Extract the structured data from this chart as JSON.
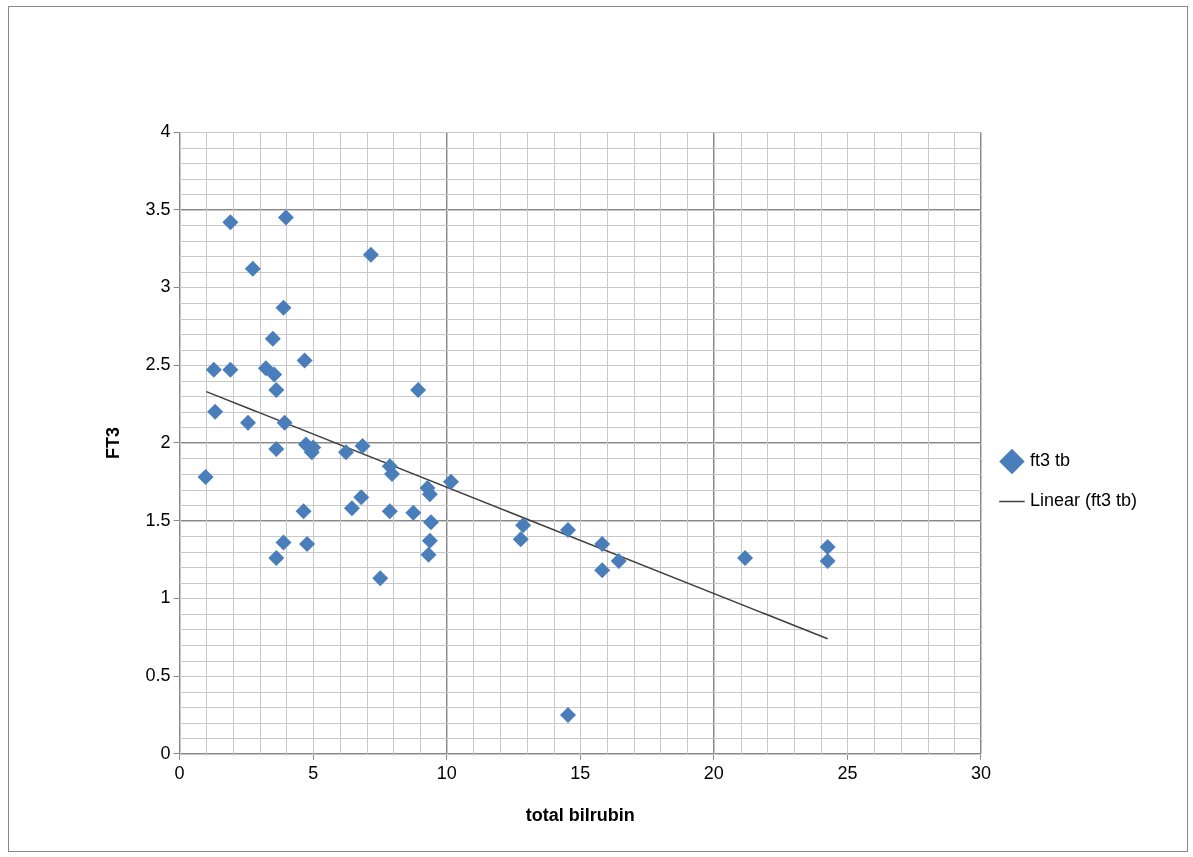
{
  "chart_data": {
    "type": "scatter",
    "xlabel": "total bilrubin",
    "ylabel": "FT3",
    "xlim": [
      0,
      30
    ],
    "xticks": [
      0,
      5,
      10,
      15,
      20,
      25,
      30
    ],
    "ylim": [
      0,
      4
    ],
    "yticks": [
      0,
      0.5,
      1,
      1.5,
      2,
      2.5,
      3,
      3.5,
      4
    ],
    "grid": true,
    "legend": "right",
    "marker": "diamond",
    "series": [
      {
        "name": "ft3 tb",
        "type": "scatter",
        "color": "#4a7ebb",
        "x": [
          0.97,
          1.28,
          1.33,
          1.9,
          1.9,
          2.56,
          2.74,
          3.23,
          3.49,
          3.54,
          3.62,
          3.62,
          3.62,
          3.89,
          3.93,
          3.89,
          3.98,
          4.64,
          4.68,
          4.73,
          4.77,
          4.95,
          5.0,
          6.23,
          6.45,
          6.8,
          6.85,
          7.16,
          7.51,
          7.87,
          7.95,
          7.87,
          8.75,
          8.93,
          9.28,
          9.37,
          9.37,
          9.41,
          9.32,
          10.16,
          12.77,
          12.86,
          14.54,
          14.54,
          15.82,
          15.82,
          16.44,
          21.17,
          24.26,
          24.26
        ],
        "values": [
          1.78,
          2.47,
          2.2,
          3.42,
          2.47,
          2.13,
          3.12,
          2.48,
          2.67,
          2.44,
          2.34,
          1.96,
          1.26,
          2.87,
          2.13,
          1.36,
          3.45,
          1.56,
          2.53,
          1.99,
          1.35,
          1.94,
          1.97,
          1.94,
          1.58,
          1.65,
          1.98,
          3.21,
          1.13,
          1.85,
          1.8,
          1.56,
          1.55,
          2.34,
          1.71,
          1.67,
          1.37,
          1.49,
          1.28,
          1.75,
          1.38,
          1.47,
          1.44,
          0.25,
          1.35,
          1.18,
          1.24,
          1.26,
          1.33,
          1.24
        ]
      },
      {
        "name": "Linear (ft3 tb)",
        "type": "line",
        "color": "#404040",
        "marker": "none",
        "x": [
          1.0,
          24.26
        ],
        "values": [
          2.33,
          0.74
        ]
      }
    ]
  }
}
